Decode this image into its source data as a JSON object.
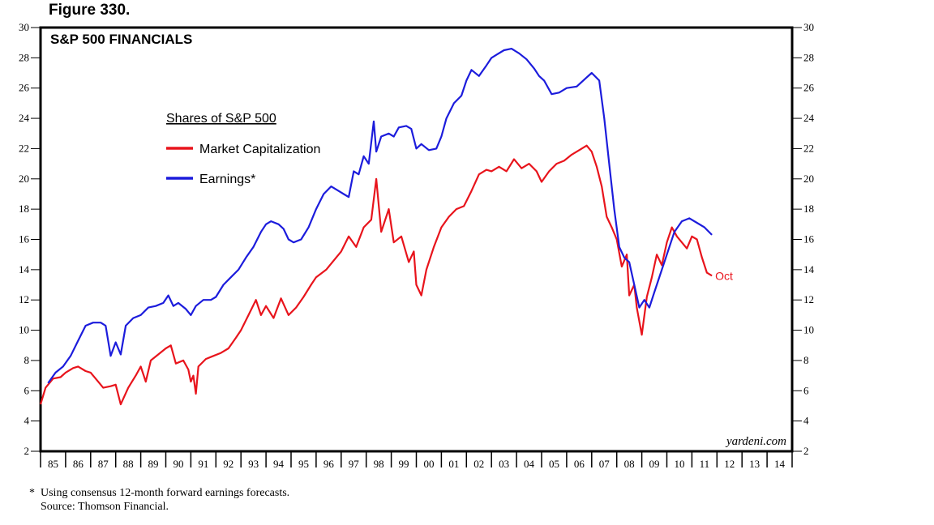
{
  "figure_label": "Figure 330.",
  "footnote": {
    "marker": "*",
    "note": "Using consensus 12-month forward earnings forecasts.",
    "source": "Source: Thomson Financial."
  },
  "chart_data": {
    "type": "line",
    "title": "S&P 500 FINANCIALS",
    "ylim": [
      2,
      30
    ],
    "y_ticks": [
      2,
      4,
      6,
      8,
      10,
      12,
      14,
      16,
      18,
      20,
      22,
      24,
      26,
      28,
      30
    ],
    "xlim": [
      1985,
      2015
    ],
    "x_tick_labels": [
      "85",
      "86",
      "87",
      "88",
      "89",
      "90",
      "91",
      "92",
      "93",
      "94",
      "95",
      "96",
      "97",
      "98",
      "99",
      "00",
      "01",
      "02",
      "03",
      "04",
      "05",
      "06",
      "07",
      "08",
      "09",
      "10",
      "11",
      "12",
      "13",
      "14"
    ],
    "legend_title": "Shares of S&P 500",
    "watermark": "yardeni.com",
    "end_label": "Oct",
    "series": [
      {
        "name": "Market Capitalization",
        "color": "#e8141c",
        "points": [
          [
            1985.0,
            5.1
          ],
          [
            1985.2,
            6.2
          ],
          [
            1985.5,
            6.8
          ],
          [
            1985.8,
            6.9
          ],
          [
            1986.0,
            7.2
          ],
          [
            1986.3,
            7.5
          ],
          [
            1986.5,
            7.6
          ],
          [
            1986.8,
            7.3
          ],
          [
            1987.0,
            7.2
          ],
          [
            1987.3,
            6.6
          ],
          [
            1987.5,
            6.2
          ],
          [
            1987.8,
            6.3
          ],
          [
            1988.0,
            6.4
          ],
          [
            1988.2,
            5.1
          ],
          [
            1988.5,
            6.2
          ],
          [
            1988.8,
            7.0
          ],
          [
            1989.0,
            7.6
          ],
          [
            1989.2,
            6.6
          ],
          [
            1989.4,
            8.0
          ],
          [
            1989.7,
            8.4
          ],
          [
            1990.0,
            8.8
          ],
          [
            1990.2,
            9.0
          ],
          [
            1990.4,
            7.8
          ],
          [
            1990.7,
            8.0
          ],
          [
            1990.9,
            7.4
          ],
          [
            1991.0,
            6.6
          ],
          [
            1991.1,
            7.0
          ],
          [
            1991.2,
            5.8
          ],
          [
            1991.3,
            7.6
          ],
          [
            1991.6,
            8.1
          ],
          [
            1991.9,
            8.3
          ],
          [
            1992.2,
            8.5
          ],
          [
            1992.5,
            8.8
          ],
          [
            1992.8,
            9.5
          ],
          [
            1993.0,
            10.0
          ],
          [
            1993.3,
            11.0
          ],
          [
            1993.6,
            12.0
          ],
          [
            1993.8,
            11.0
          ],
          [
            1994.0,
            11.6
          ],
          [
            1994.3,
            10.8
          ],
          [
            1994.6,
            12.1
          ],
          [
            1994.9,
            11.0
          ],
          [
            1995.2,
            11.5
          ],
          [
            1995.5,
            12.2
          ],
          [
            1995.8,
            13.0
          ],
          [
            1996.0,
            13.5
          ],
          [
            1996.4,
            14.0
          ],
          [
            1996.8,
            14.8
          ],
          [
            1997.0,
            15.2
          ],
          [
            1997.3,
            16.2
          ],
          [
            1997.6,
            15.5
          ],
          [
            1997.9,
            16.8
          ],
          [
            1998.2,
            17.3
          ],
          [
            1998.4,
            20.0
          ],
          [
            1998.6,
            16.5
          ],
          [
            1998.9,
            18.0
          ],
          [
            1999.1,
            15.8
          ],
          [
            1999.4,
            16.2
          ],
          [
            1999.7,
            14.5
          ],
          [
            1999.9,
            15.2
          ],
          [
            2000.0,
            13.0
          ],
          [
            2000.2,
            12.3
          ],
          [
            2000.4,
            14.0
          ],
          [
            2000.7,
            15.5
          ],
          [
            2001.0,
            16.8
          ],
          [
            2001.3,
            17.5
          ],
          [
            2001.6,
            18.0
          ],
          [
            2001.9,
            18.2
          ],
          [
            2002.2,
            19.2
          ],
          [
            2002.5,
            20.3
          ],
          [
            2002.8,
            20.6
          ],
          [
            2003.0,
            20.5
          ],
          [
            2003.3,
            20.8
          ],
          [
            2003.6,
            20.5
          ],
          [
            2003.9,
            21.3
          ],
          [
            2004.2,
            20.7
          ],
          [
            2004.5,
            21.0
          ],
          [
            2004.8,
            20.5
          ],
          [
            2005.0,
            19.8
          ],
          [
            2005.3,
            20.5
          ],
          [
            2005.6,
            21.0
          ],
          [
            2005.9,
            21.2
          ],
          [
            2006.2,
            21.6
          ],
          [
            2006.5,
            21.9
          ],
          [
            2006.8,
            22.2
          ],
          [
            2007.0,
            21.8
          ],
          [
            2007.2,
            20.8
          ],
          [
            2007.4,
            19.5
          ],
          [
            2007.6,
            17.5
          ],
          [
            2007.8,
            16.8
          ],
          [
            2008.0,
            16.0
          ],
          [
            2008.2,
            14.2
          ],
          [
            2008.4,
            15.0
          ],
          [
            2008.5,
            12.3
          ],
          [
            2008.7,
            13.0
          ],
          [
            2008.8,
            11.5
          ],
          [
            2009.0,
            9.7
          ],
          [
            2009.2,
            12.2
          ],
          [
            2009.4,
            13.5
          ],
          [
            2009.6,
            15.0
          ],
          [
            2009.8,
            14.3
          ],
          [
            2010.0,
            15.8
          ],
          [
            2010.2,
            16.8
          ],
          [
            2010.4,
            16.2
          ],
          [
            2010.6,
            15.8
          ],
          [
            2010.8,
            15.4
          ],
          [
            2011.0,
            16.2
          ],
          [
            2011.2,
            16.0
          ],
          [
            2011.4,
            14.8
          ],
          [
            2011.6,
            13.8
          ],
          [
            2011.8,
            13.6
          ]
        ]
      },
      {
        "name": "Earnings*",
        "color": "#1c1cdc",
        "points": [
          [
            1985.3,
            6.5
          ],
          [
            1985.6,
            7.2
          ],
          [
            1985.9,
            7.6
          ],
          [
            1986.2,
            8.3
          ],
          [
            1986.5,
            9.3
          ],
          [
            1986.8,
            10.3
          ],
          [
            1987.1,
            10.5
          ],
          [
            1987.4,
            10.5
          ],
          [
            1987.6,
            10.3
          ],
          [
            1987.8,
            8.3
          ],
          [
            1988.0,
            9.2
          ],
          [
            1988.2,
            8.4
          ],
          [
            1988.4,
            10.3
          ],
          [
            1988.7,
            10.8
          ],
          [
            1989.0,
            11.0
          ],
          [
            1989.3,
            11.5
          ],
          [
            1989.6,
            11.6
          ],
          [
            1989.9,
            11.8
          ],
          [
            1990.1,
            12.3
          ],
          [
            1990.3,
            11.6
          ],
          [
            1990.5,
            11.8
          ],
          [
            1990.8,
            11.4
          ],
          [
            1991.0,
            11.0
          ],
          [
            1991.2,
            11.6
          ],
          [
            1991.5,
            12.0
          ],
          [
            1991.8,
            12.0
          ],
          [
            1992.0,
            12.2
          ],
          [
            1992.3,
            13.0
          ],
          [
            1992.6,
            13.5
          ],
          [
            1992.9,
            14.0
          ],
          [
            1993.2,
            14.8
          ],
          [
            1993.5,
            15.5
          ],
          [
            1993.8,
            16.5
          ],
          [
            1994.0,
            17.0
          ],
          [
            1994.2,
            17.2
          ],
          [
            1994.5,
            17.0
          ],
          [
            1994.7,
            16.7
          ],
          [
            1994.9,
            16.0
          ],
          [
            1995.1,
            15.8
          ],
          [
            1995.4,
            16.0
          ],
          [
            1995.7,
            16.8
          ],
          [
            1996.0,
            18.0
          ],
          [
            1996.3,
            19.0
          ],
          [
            1996.6,
            19.5
          ],
          [
            1996.9,
            19.2
          ],
          [
            1997.1,
            19.0
          ],
          [
            1997.3,
            18.8
          ],
          [
            1997.5,
            20.5
          ],
          [
            1997.7,
            20.3
          ],
          [
            1997.9,
            21.5
          ],
          [
            1998.1,
            21.0
          ],
          [
            1998.3,
            23.8
          ],
          [
            1998.4,
            21.8
          ],
          [
            1998.6,
            22.8
          ],
          [
            1998.9,
            23.0
          ],
          [
            1999.1,
            22.8
          ],
          [
            1999.3,
            23.4
          ],
          [
            1999.6,
            23.5
          ],
          [
            1999.8,
            23.3
          ],
          [
            2000.0,
            22.0
          ],
          [
            2000.2,
            22.3
          ],
          [
            2000.5,
            21.9
          ],
          [
            2000.8,
            22.0
          ],
          [
            2001.0,
            22.8
          ],
          [
            2001.2,
            24.0
          ],
          [
            2001.5,
            25.0
          ],
          [
            2001.8,
            25.5
          ],
          [
            2002.0,
            26.5
          ],
          [
            2002.2,
            27.2
          ],
          [
            2002.5,
            26.8
          ],
          [
            2002.8,
            27.5
          ],
          [
            2003.0,
            28.0
          ],
          [
            2003.2,
            28.2
          ],
          [
            2003.5,
            28.5
          ],
          [
            2003.8,
            28.6
          ],
          [
            2004.1,
            28.3
          ],
          [
            2004.4,
            27.9
          ],
          [
            2004.7,
            27.3
          ],
          [
            2004.9,
            26.8
          ],
          [
            2005.1,
            26.5
          ],
          [
            2005.4,
            25.6
          ],
          [
            2005.7,
            25.7
          ],
          [
            2006.0,
            26.0
          ],
          [
            2006.4,
            26.1
          ],
          [
            2006.8,
            26.7
          ],
          [
            2007.0,
            27.0
          ],
          [
            2007.3,
            26.5
          ],
          [
            2007.5,
            24.0
          ],
          [
            2007.7,
            21.0
          ],
          [
            2007.9,
            18.0
          ],
          [
            2008.1,
            15.5
          ],
          [
            2008.3,
            14.8
          ],
          [
            2008.5,
            14.5
          ],
          [
            2008.7,
            13.0
          ],
          [
            2008.9,
            11.5
          ],
          [
            2009.1,
            12.0
          ],
          [
            2009.3,
            11.5
          ],
          [
            2009.5,
            12.5
          ],
          [
            2009.8,
            14.0
          ],
          [
            2010.0,
            15.0
          ],
          [
            2010.3,
            16.5
          ],
          [
            2010.6,
            17.2
          ],
          [
            2010.9,
            17.4
          ],
          [
            2011.2,
            17.1
          ],
          [
            2011.5,
            16.8
          ],
          [
            2011.8,
            16.3
          ]
        ]
      }
    ]
  }
}
